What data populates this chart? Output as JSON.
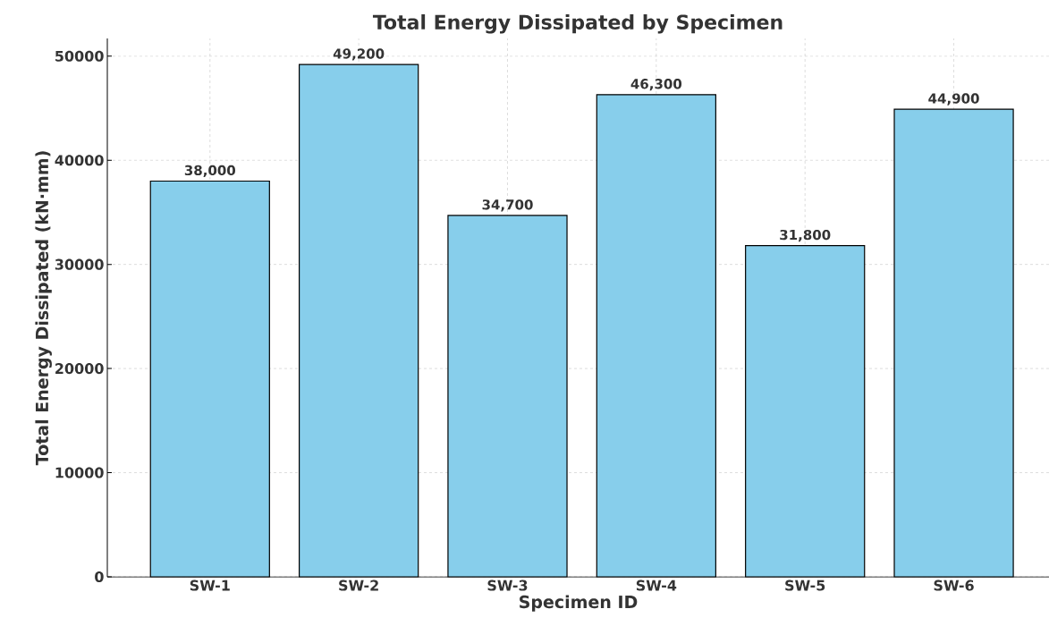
{
  "chart_data": {
    "type": "bar",
    "title": "Total Energy Dissipated by Specimen",
    "xlabel": "Specimen ID",
    "ylabel": "Total Energy Dissipated (kN·mm)",
    "categories": [
      "SW-1",
      "SW-2",
      "SW-3",
      "SW-4",
      "SW-5",
      "SW-6"
    ],
    "values": [
      38000,
      49200,
      34700,
      46300,
      31800,
      44900
    ],
    "value_labels": [
      "38,000",
      "49,200",
      "34,700",
      "46,300",
      "31,800",
      "44,900"
    ],
    "color": "#87ceeb",
    "ylim": [
      0,
      51700
    ],
    "yticks": [
      0,
      10000,
      20000,
      30000,
      40000,
      50000
    ],
    "grid": true
  }
}
